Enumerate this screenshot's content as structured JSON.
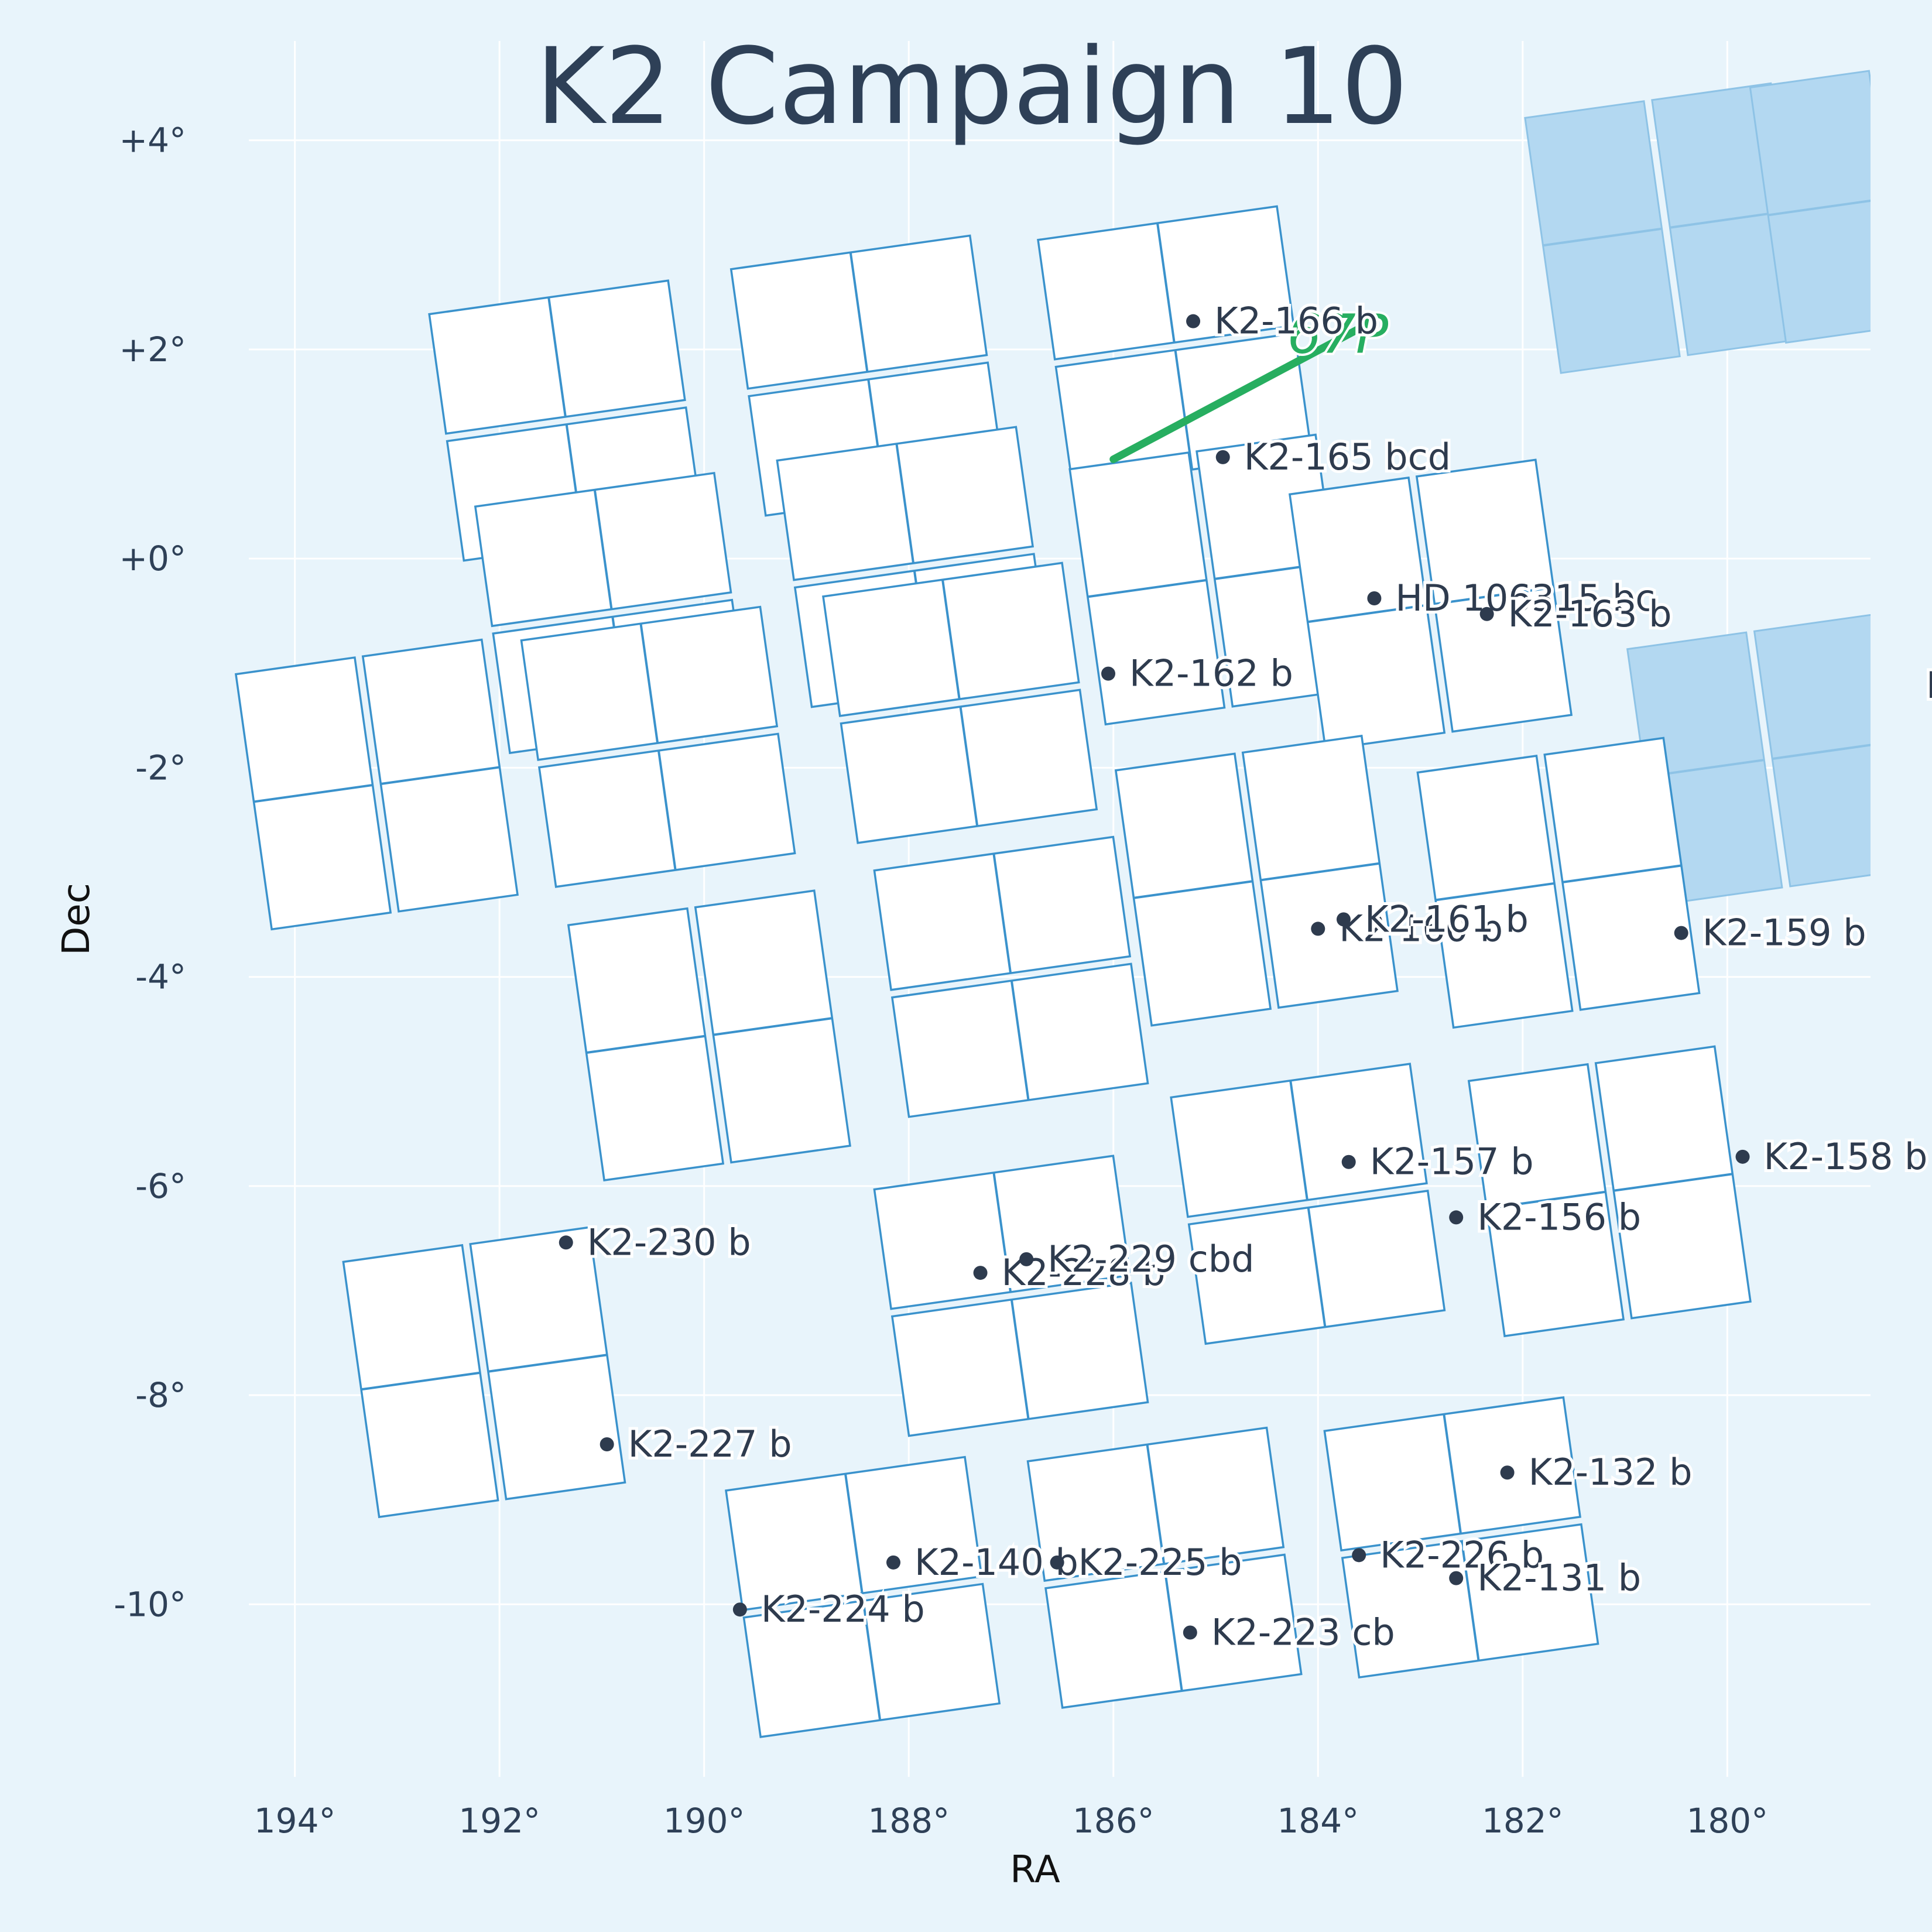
{
  "chart_data": {
    "type": "scatter",
    "title": "K2 Campaign 10",
    "xlabel": "RA",
    "ylabel": "Dec",
    "xlim": [
      194.45,
      178.6
    ],
    "ylim": [
      -11.65,
      4.95
    ],
    "grid": true,
    "x_ticks": [
      {
        "value": 194,
        "label": "194°"
      },
      {
        "value": 192,
        "label": "192°"
      },
      {
        "value": 190,
        "label": "190°"
      },
      {
        "value": 188,
        "label": "188°"
      },
      {
        "value": 186,
        "label": "186°"
      },
      {
        "value": 184,
        "label": "184°"
      },
      {
        "value": 182,
        "label": "182°"
      },
      {
        "value": 180,
        "label": "180°"
      }
    ],
    "y_ticks": [
      {
        "value": 4,
        "label": "+4°"
      },
      {
        "value": 2,
        "label": "+2°"
      },
      {
        "value": 0,
        "label": "+0°"
      },
      {
        "value": -2,
        "label": "-2°"
      },
      {
        "value": -4,
        "label": "-4°"
      },
      {
        "value": -6,
        "label": "-6°"
      },
      {
        "value": -8,
        "label": "-8°"
      },
      {
        "value": -10,
        "label": "-10°"
      }
    ],
    "modules": [
      {
        "ra": 191.35,
        "dec": 1.32
      },
      {
        "ra": 188.4,
        "dec": 1.75
      },
      {
        "ra": 185.4,
        "dec": 2.03
      },
      {
        "ra": 190.9,
        "dec": -0.52
      },
      {
        "ra": 187.95,
        "dec": -0.08
      },
      {
        "ra": 185.05,
        "dec": -0.2,
        "orient": "portrait"
      },
      {
        "ra": 182.9,
        "dec": -0.44,
        "orient": "portrait"
      },
      {
        "ra": 193.2,
        "dec": -2.16,
        "orient": "portrait"
      },
      {
        "ra": 190.45,
        "dec": -1.8
      },
      {
        "ra": 187.5,
        "dec": -1.38
      },
      {
        "ra": 184.6,
        "dec": -3.08,
        "orient": "portrait"
      },
      {
        "ra": 181.65,
        "dec": -3.1,
        "orient": "portrait"
      },
      {
        "ra": 189.95,
        "dec": -4.56,
        "orient": "portrait"
      },
      {
        "ra": 187.0,
        "dec": -4.0
      },
      {
        "ra": 187.0,
        "dec": -7.05
      },
      {
        "ra": 184.1,
        "dec": -6.17
      },
      {
        "ra": 181.15,
        "dec": -6.05,
        "orient": "portrait"
      },
      {
        "ra": 192.15,
        "dec": -7.78,
        "orient": "portrait"
      },
      {
        "ra": 188.45,
        "dec": -9.93
      },
      {
        "ra": 185.5,
        "dec": -9.65
      },
      {
        "ra": 182.6,
        "dec": -9.36
      }
    ],
    "neighbor_modules": [
      {
        "ra": 180.6,
        "dec": 3.16,
        "orient": "portrait"
      },
      {
        "ra": 179.6,
        "dec": -1.92,
        "orient": "portrait"
      },
      {
        "ra": 178.4,
        "dec": 3.45,
        "orient": "portrait"
      }
    ],
    "comet": {
      "name": "67P",
      "label": "67P",
      "track": [
        [
          186.0,
          0.95
        ],
        [
          183.5,
          2.25
        ]
      ]
    },
    "planets": [
      {
        "ra": 185.22,
        "dec": 2.27,
        "label": "K2-166 b"
      },
      {
        "ra": 184.93,
        "dec": 0.97,
        "label": "K2-165 bcd"
      },
      {
        "ra": 183.45,
        "dec": -0.38,
        "label": "HD 106315 bc"
      },
      {
        "ra": 182.35,
        "dec": -0.53,
        "label": "K2-163 b"
      },
      {
        "ra": 186.05,
        "dec": -1.1,
        "label": "K2-162 b"
      },
      {
        "ra": 184.0,
        "dec": -3.54,
        "label": "K2-160 b"
      },
      {
        "ra": 183.75,
        "dec": -3.45,
        "label": "K2-161 b"
      },
      {
        "ra": 180.45,
        "dec": -3.58,
        "label": "K2-159 b"
      },
      {
        "ra": 179.85,
        "dec": -5.72,
        "label": "K2-158 b"
      },
      {
        "ra": 183.7,
        "dec": -5.77,
        "label": "K2-157 b"
      },
      {
        "ra": 182.65,
        "dec": -6.3,
        "label": "K2-156 b"
      },
      {
        "ra": 191.35,
        "dec": -6.54,
        "label": "K2-230 b"
      },
      {
        "ra": 187.3,
        "dec": -6.83,
        "label": "K2-228 b"
      },
      {
        "ra": 186.85,
        "dec": -6.7,
        "label": "K2-229 cbd"
      },
      {
        "ra": 190.95,
        "dec": -8.47,
        "label": "K2-227 b"
      },
      {
        "ra": 182.15,
        "dec": -8.74,
        "label": "K2-132 b"
      },
      {
        "ra": 188.15,
        "dec": -9.6,
        "label": "K2-140 b"
      },
      {
        "ra": 186.55,
        "dec": -9.6,
        "label": "K2-225 b"
      },
      {
        "ra": 183.6,
        "dec": -9.53,
        "label": "K2-226 b"
      },
      {
        "ra": 182.65,
        "dec": -9.75,
        "label": "K2-131 b"
      },
      {
        "ra": 189.65,
        "dec": -10.05,
        "label": "K2-224 b"
      },
      {
        "ra": 185.25,
        "dec": -10.27,
        "label": "K2-223 cb"
      }
    ],
    "edge_label": "H"
  },
  "colors": {
    "background": "#e8f4fb",
    "ccd_outline": "#3a92cc",
    "neighbor_fill": "#b3d8f1",
    "comet": "#27ae60",
    "planet_marker": "#2e3b4e",
    "title": "#2e4057"
  }
}
